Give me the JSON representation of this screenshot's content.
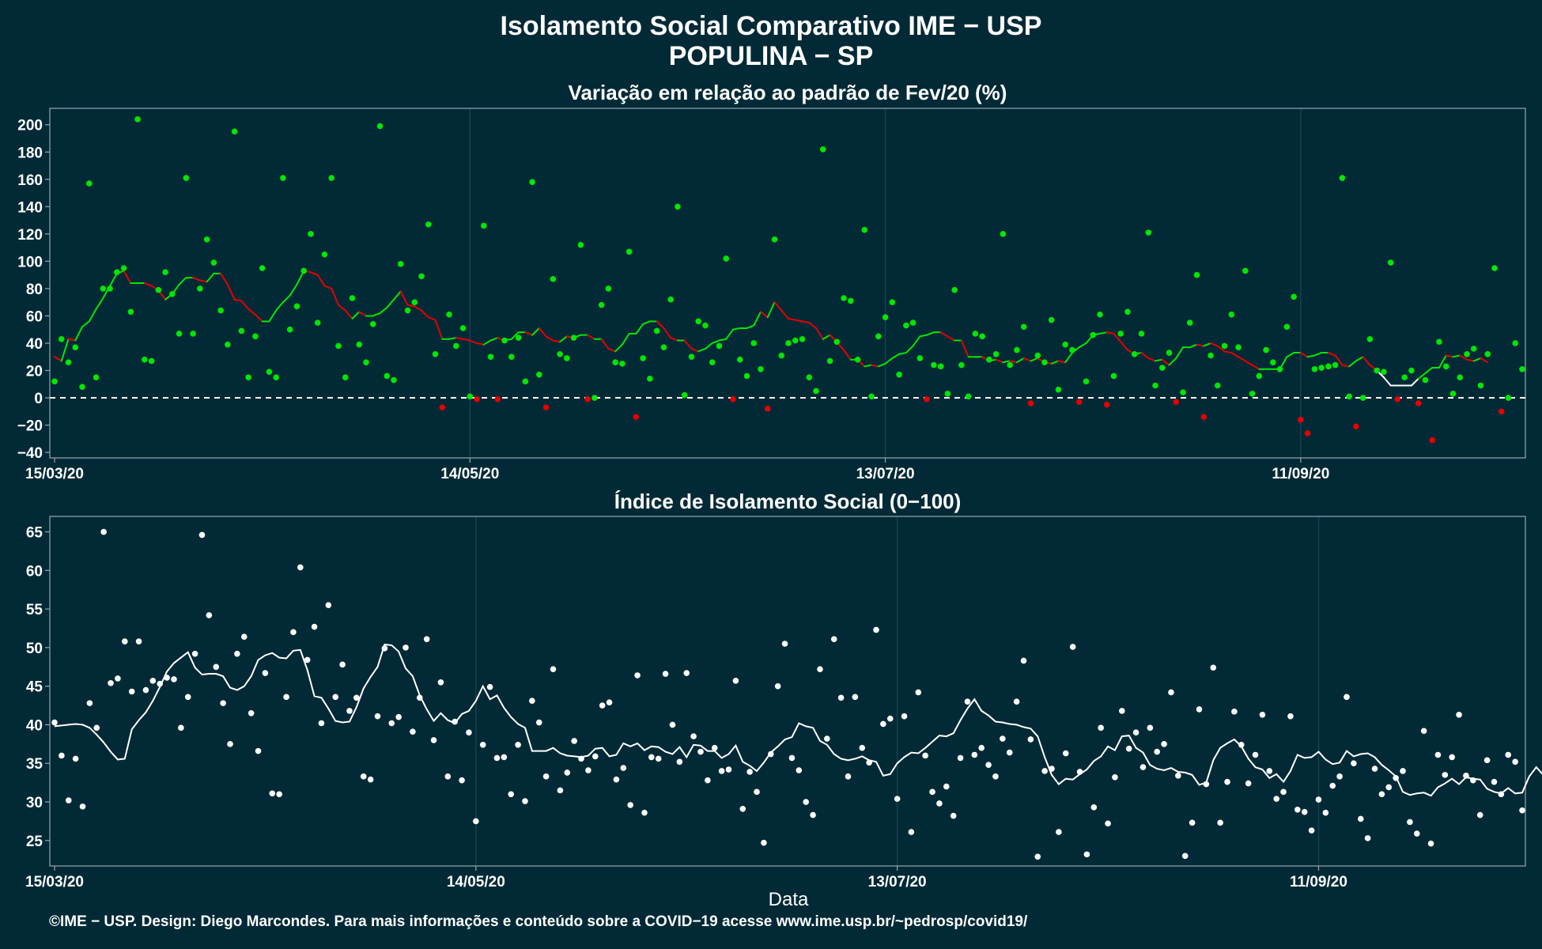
{
  "title_line1": "Isolamento Social Comparativo IME − USP",
  "title_line2": "POPULINA − SP",
  "xlabel": "Data",
  "footer": "©IME − USP. Design: Diego Marcondes. Para mais informações e conteúdo sobre a COVID−19 acesse www.ime.usp.br/~pedrosp/covid19/",
  "colors": {
    "background": "#022a36",
    "panel_border": "#9aa7ab",
    "green": "#00e600",
    "red": "#e60000",
    "white": "#ffffff",
    "grid": "#16414c"
  },
  "chart_data": [
    {
      "type": "scatter",
      "title": "Variação em relação ao padrão de Fev/20 (%)",
      "x_start": "15/03/20",
      "x_end": "01/10/20",
      "xticks": [
        "15/03/20",
        "14/05/20",
        "13/07/20",
        "11/09/20"
      ],
      "yticks": [
        -40,
        -20,
        0,
        20,
        40,
        60,
        80,
        100,
        120,
        140,
        160,
        180,
        200
      ],
      "ylim": [
        -44,
        212
      ],
      "reference_line": 0,
      "point_color_rule": "green if value >= 0, red if value < 0",
      "points": [
        12,
        43,
        26,
        37,
        8,
        157,
        15,
        80,
        80,
        92,
        95,
        63,
        204,
        28,
        27,
        79,
        92,
        76,
        47,
        161,
        47,
        80,
        116,
        99,
        64,
        39,
        195,
        49,
        15,
        45,
        95,
        19,
        15,
        161,
        50,
        67,
        93,
        120,
        55,
        105,
        161,
        38,
        15,
        73,
        39,
        26,
        54,
        199,
        16,
        13,
        98,
        64,
        70,
        89,
        127,
        32,
        -7,
        61,
        38,
        51,
        1,
        -1,
        126,
        30,
        -1,
        42,
        30,
        44,
        12,
        158,
        17,
        -7,
        87,
        32,
        29,
        44,
        112,
        -1,
        0,
        68,
        80,
        26,
        25,
        107,
        -14,
        29,
        14,
        49,
        37,
        72,
        140,
        2,
        30,
        56,
        53,
        26,
        38,
        102,
        -1,
        28,
        16,
        40,
        21,
        -8,
        116,
        31,
        40,
        42,
        43,
        15,
        5,
        182,
        27,
        41,
        73,
        71,
        28,
        123,
        1,
        45,
        59,
        70,
        17,
        53,
        55,
        29,
        -1,
        24,
        23,
        3,
        79,
        24,
        1,
        47,
        45,
        28,
        32,
        120,
        24,
        35,
        52,
        -4,
        31,
        26,
        57,
        6,
        39,
        35,
        -3,
        12,
        46,
        61,
        -5,
        16,
        47,
        63,
        32,
        47,
        121,
        9,
        22,
        33,
        -3,
        4,
        55,
        90,
        -14,
        31,
        9,
        38,
        61,
        37,
        93,
        3,
        16,
        35,
        26,
        21,
        52,
        74,
        -16,
        -26,
        21,
        22,
        23,
        24,
        161,
        1,
        -21,
        0,
        43,
        20,
        19,
        99,
        -1,
        15,
        20,
        -4,
        13,
        -31,
        41,
        23,
        3,
        15,
        32,
        36,
        9,
        32,
        95,
        -10,
        0,
        40,
        21
      ],
      "moving_avg": [
        30,
        27,
        43,
        42,
        52,
        56,
        65,
        73,
        82,
        91,
        93,
        84,
        84,
        84,
        82,
        79,
        72,
        76,
        83,
        88,
        88,
        86,
        85,
        91,
        91,
        83,
        72,
        71,
        65,
        61,
        56,
        56,
        64,
        70,
        75,
        83,
        93,
        92,
        90,
        82,
        80,
        68,
        64,
        58,
        63,
        60,
        60,
        62,
        66,
        72,
        78,
        68,
        67,
        64,
        59,
        57,
        43,
        43,
        44,
        43,
        42,
        40,
        39,
        42,
        44,
        42,
        43,
        48,
        48,
        46,
        51,
        45,
        42,
        41,
        45,
        44,
        46,
        46,
        43,
        43,
        36,
        34,
        39,
        47,
        47,
        54,
        56,
        56,
        51,
        44,
        42,
        42,
        36,
        34,
        36,
        40,
        42,
        43,
        50,
        51,
        51,
        53,
        63,
        59,
        70,
        64,
        58,
        57,
        56,
        55,
        51,
        43,
        46,
        41,
        35,
        28,
        28,
        23,
        24,
        23,
        25,
        29,
        32,
        33,
        38,
        45,
        46,
        48,
        48,
        45,
        42,
        42,
        30,
        30,
        30,
        27,
        28,
        26,
        27,
        26,
        29,
        27,
        29,
        26,
        25,
        27,
        26,
        33,
        37,
        40,
        46,
        47,
        48,
        47,
        41,
        35,
        32,
        33,
        29,
        27,
        28,
        24,
        29,
        37,
        37,
        39,
        38,
        40,
        38,
        34,
        33,
        30,
        27,
        24,
        21,
        21,
        21,
        21,
        30,
        33,
        33,
        30,
        31,
        33,
        33,
        31,
        24,
        23,
        27,
        30,
        24,
        20,
        15,
        9,
        9,
        9,
        9,
        14,
        18,
        22,
        22,
        31,
        30,
        31,
        28,
        27,
        29,
        26
      ],
      "segment_colors": "green where moving average rising, red where falling, white near end"
    },
    {
      "type": "scatter",
      "title": "Índice de Isolamento Social (0−100)",
      "x_start": "15/03/20",
      "x_end": "01/10/20",
      "xticks": [
        "15/03/20",
        "14/05/20",
        "13/07/20",
        "11/09/20"
      ],
      "yticks": [
        25,
        30,
        35,
        40,
        45,
        50,
        55,
        60,
        65
      ],
      "ylim": [
        21.7,
        67
      ],
      "point_color_rule": "white",
      "points": [
        40.3,
        36.0,
        30.2,
        35.6,
        29.4,
        42.8,
        39.6,
        65.0,
        45.4,
        46.0,
        50.8,
        44.3,
        50.8,
        44.5,
        45.7,
        45.3,
        46.1,
        45.9,
        39.6,
        43.6,
        49.2,
        64.6,
        54.2,
        47.5,
        42.8,
        37.5,
        49.2,
        51.4,
        41.5,
        36.6,
        46.7,
        31.1,
        31.0,
        43.6,
        52.0,
        60.4,
        48.4,
        52.7,
        40.2,
        55.5,
        43.6,
        47.8,
        41.8,
        43.5,
        33.3,
        32.9,
        41.1,
        49.9,
        40.2,
        41.0,
        50.0,
        39.1,
        43.5,
        51.1,
        38.0,
        45.5,
        33.3,
        40.4,
        32.8,
        39.0,
        27.5,
        37.4,
        44.9,
        35.7,
        35.8,
        31.0,
        37.4,
        30.1,
        43.1,
        40.3,
        33.3,
        47.2,
        31.5,
        33.8,
        37.9,
        35.6,
        34.1,
        35.9,
        42.5,
        42.9,
        32.9,
        34.4,
        29.6,
        46.4,
        28.6,
        35.8,
        35.6,
        46.6,
        40.0,
        35.2,
        46.7,
        38.5,
        36.5,
        32.8,
        37.0,
        34.0,
        34.2,
        45.7,
        29.1,
        33.9,
        31.3,
        24.7,
        36.2,
        45.0,
        50.5,
        35.7,
        34.1,
        30.0,
        28.3,
        47.2,
        38.2,
        51.1,
        43.5,
        33.3,
        43.6,
        37.0,
        35.1,
        52.3,
        40.1,
        40.8,
        30.4,
        41.1,
        26.1,
        44.2,
        36.0,
        31.3,
        29.8,
        32.0,
        28.2,
        35.7,
        43.0,
        36.1,
        37.0,
        34.8,
        33.3,
        38.2,
        36.4,
        43.0,
        48.3,
        38.1,
        22.9,
        34.0,
        34.3,
        26.1,
        36.3,
        50.1,
        33.9,
        23.2,
        29.3,
        39.6,
        27.2,
        33.2,
        41.8,
        36.9,
        39.0,
        34.5,
        39.6,
        36.5,
        37.5,
        44.2,
        33.4,
        23.0,
        27.3,
        42.0,
        32.3,
        47.4,
        27.3,
        32.6,
        41.7,
        37.4,
        32.4,
        36.1,
        41.3,
        34.0,
        30.4,
        31.3,
        41.1,
        29.0,
        28.7,
        26.3,
        30.3,
        28.6,
        32.1,
        33.3,
        43.6,
        35.0,
        27.8,
        25.3,
        34.3,
        31.0,
        31.9,
        33.1,
        34.0,
        27.4,
        25.9,
        39.2,
        24.6,
        36.1,
        33.5,
        35.8,
        41.3,
        33.4,
        32.8,
        28.3,
        35.4,
        32.6,
        31.0,
        36.1,
        35.2,
        28.9
      ],
      "moving_avg": [
        39.8,
        39.9,
        40.0,
        40.1,
        40.0,
        39.6,
        38.7,
        37.7,
        36.5,
        35.5,
        35.6,
        39.4,
        40.6,
        41.6,
        43.1,
        44.9,
        46.9,
        48.0,
        48.7,
        49.4,
        47.4,
        46.5,
        46.6,
        46.6,
        46.3,
        44.8,
        44.5,
        45.0,
        46.3,
        48.4,
        49.0,
        49.3,
        48.7,
        48.6,
        49.6,
        49.7,
        47.1,
        43.7,
        43.5,
        42.1,
        40.5,
        40.3,
        40.4,
        42.3,
        44.7,
        46.2,
        47.5,
        50.4,
        50.3,
        49.5,
        47.3,
        46.3,
        43.8,
        42.0,
        40.5,
        41.5,
        40.6,
        40.2,
        41.4,
        41.8,
        43.1,
        45.0,
        43.3,
        43.8,
        42.2,
        41.0,
        40.1,
        39.6,
        36.6,
        36.6,
        36.6,
        37.0,
        36.3,
        36.0,
        35.9,
        35.8,
        36.0,
        36.9,
        37.0,
        35.9,
        36.1,
        37.6,
        37.2,
        37.6,
        36.7,
        37.2,
        37.1,
        36.5,
        36.2,
        37.1,
        35.8,
        37.4,
        37.3,
        36.6,
        36.6,
        35.7,
        36.2,
        37.3,
        35.2,
        34.7,
        34.0,
        35.1,
        36.4,
        37.2,
        38.1,
        38.4,
        40.2,
        39.8,
        39.6,
        37.9,
        37.4,
        36.2,
        35.6,
        35.4,
        35.6,
        35.9,
        35.4,
        35.2,
        33.4,
        33.6,
        35.0,
        35.8,
        36.4,
        36.3,
        37.0,
        37.8,
        38.6,
        38.5,
        38.9,
        40.6,
        42.1,
        43.3,
        41.8,
        41.2,
        40.4,
        40.3,
        40.1,
        40.0,
        39.7,
        39.5,
        38.5,
        35.8,
        33.5,
        32.3,
        33.0,
        32.9,
        33.6,
        34.2,
        35.3,
        35.9,
        37.2,
        36.7,
        38.5,
        38.6,
        37.0,
        36.4,
        34.8,
        34.3,
        34.1,
        34.4,
        33.9,
        33.8,
        33.5,
        32.2,
        32.5,
        35.4,
        37.0,
        37.6,
        38.1,
        37.2,
        35.6,
        34.5,
        34.2,
        33.1,
        33.6,
        32.6,
        34.0,
        36.1,
        35.7,
        35.8,
        36.5,
        35.5,
        34.9,
        35.1,
        36.6,
        35.9,
        36.2,
        36.3,
        35.8,
        34.8,
        34.1,
        33.3,
        31.3,
        30.9,
        31.1,
        31.2,
        30.8,
        31.9,
        32.4,
        33.0,
        32.3,
        33.2,
        33.0,
        32.9,
        31.7,
        31.3,
        31.1,
        31.8,
        31.1,
        31.2,
        33.3,
        34.5,
        33.5,
        34.1,
        33.9,
        33.8,
        32.7,
        32.5,
        32.9,
        30.4,
        31.2
      ],
      "line_color": "white"
    }
  ]
}
